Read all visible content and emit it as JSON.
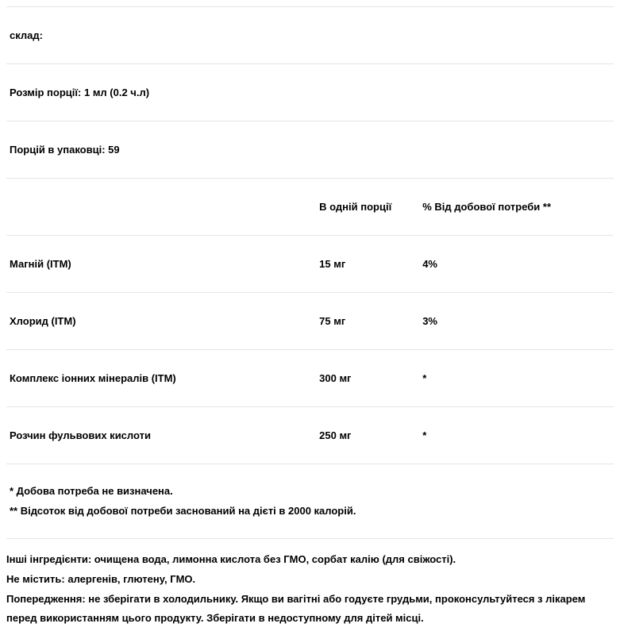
{
  "header": {
    "composition": "склад:",
    "serving_size": "Розмір порції: 1 мл (0.2 ч.л)",
    "servings_per_container": "Порцій в упаковці: 59"
  },
  "table": {
    "columns": {
      "per_serving": "В одній порції",
      "daily_value": "% Від добової потреби **"
    },
    "rows": [
      {
        "name": "Магній (ITM)",
        "amount": "15 мг",
        "dv": "4%"
      },
      {
        "name": "Хлорид (ITM)",
        "amount": "75 мг",
        "dv": "3%"
      },
      {
        "name": "Комплекс іонних мінералів (ITM)",
        "amount": "300 мг",
        "dv": "*"
      },
      {
        "name": "Розчин фульвових кислоти",
        "amount": "250 мг",
        "dv": "*"
      }
    ]
  },
  "notes": {
    "note1": "* Добова потреба не визначена.",
    "note2": "** Відсоток від добової потреби заснований на дієті в 2000 калорій."
  },
  "footer": {
    "other_ingredients": "Інші інгредієнти: очищена вода, лимонна кислота без ГМО, сорбат калію (для свіжості).",
    "free_from": "Не містить: алергенів, глютену, ГМО.",
    "warning": "Попередження: не зберігати в холодильнику. Якщо ви вагітні або годуєте грудьми, проконсультуйтеся з лікарем перед використанням цього продукту. Зберігати в недоступному для дітей місці."
  }
}
